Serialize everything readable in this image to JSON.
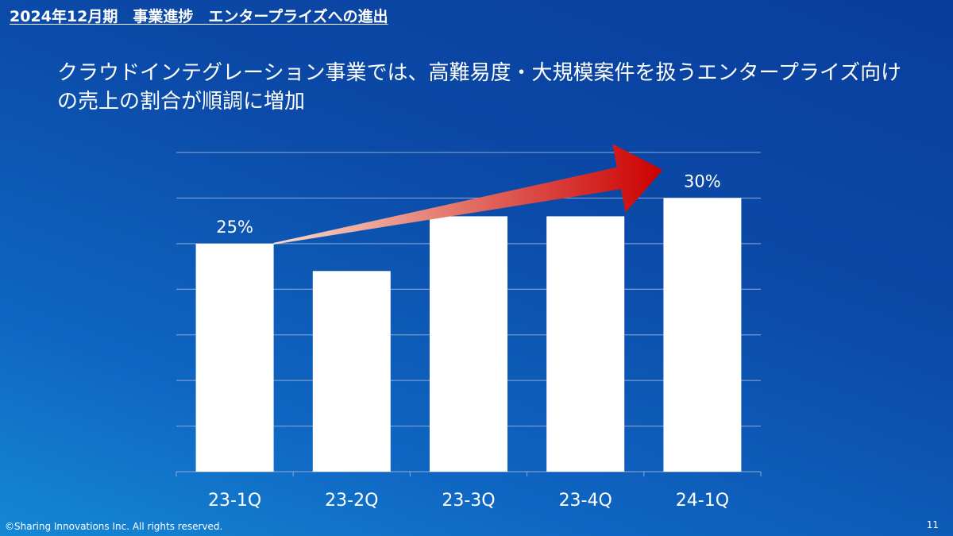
{
  "header": {
    "title": "2024年12月期　事業進捗　エンタープライズへの進出"
  },
  "headline": {
    "text": "クラウドインテグレーション事業では、高難易度・大規模案件を扱うエンタープライズ向けの売上の割合が順調に増加"
  },
  "chart_data": {
    "type": "bar",
    "title": "",
    "xlabel": "",
    "ylabel": "",
    "categories": [
      "23-1Q",
      "23-2Q",
      "23-3Q",
      "23-4Q",
      "24-1Q"
    ],
    "values": [
      25,
      22,
      28,
      28,
      30
    ],
    "labels": [
      "25%",
      "",
      "",
      "",
      "30%"
    ],
    "ylim": [
      0,
      35
    ],
    "grid": true,
    "annotation": "red gradient arrow rising from 23-1Q to 24-1Q",
    "colors": {
      "bar": "#ffffff",
      "grid": "#8fa8d6",
      "arrow_start": "#f8dccb",
      "arrow_end": "#cc0000"
    }
  },
  "footer": {
    "copyright": "©Sharing Innovations Inc. All rights reserved.",
    "page": "11"
  }
}
